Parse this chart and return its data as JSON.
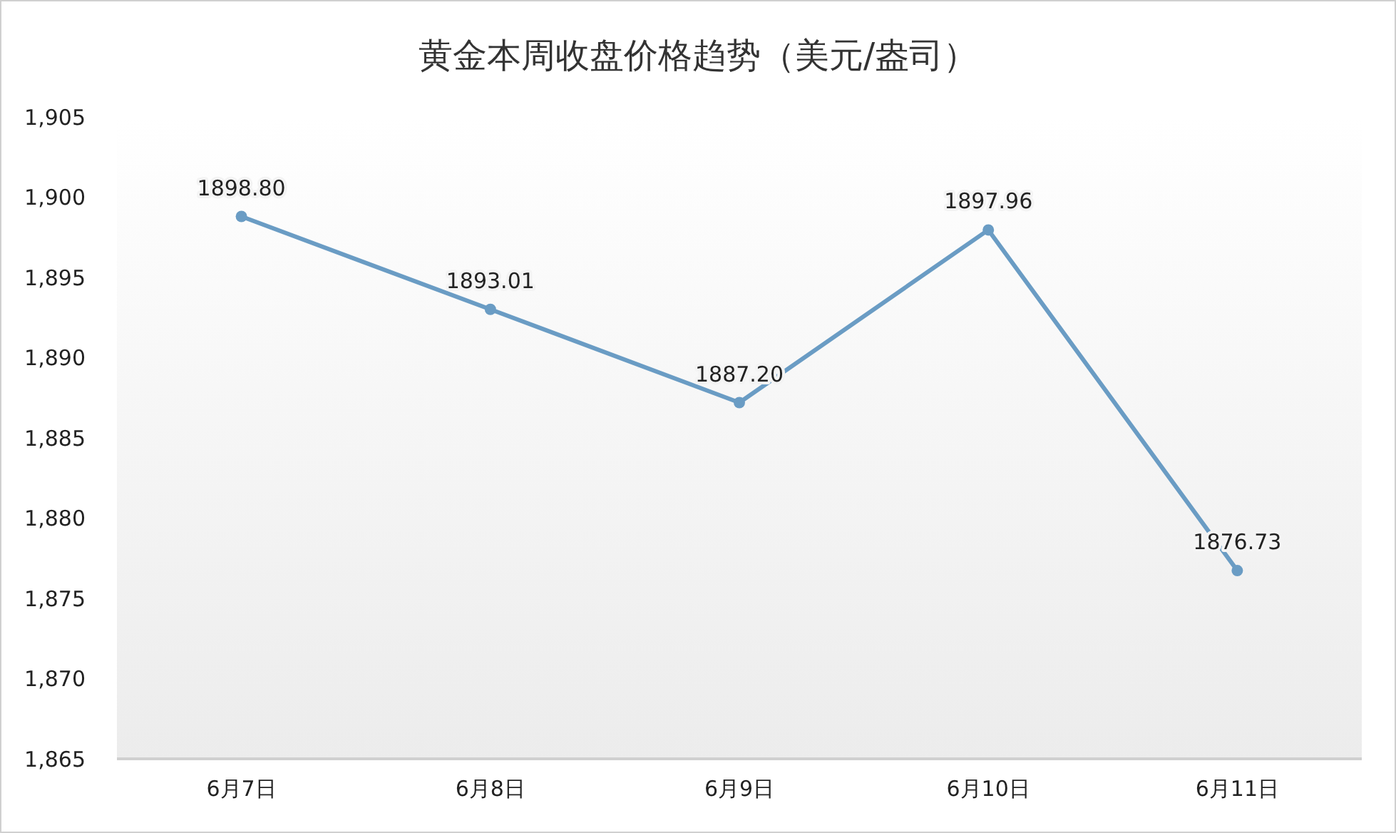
{
  "chart_data": {
    "type": "line",
    "title": "黄金本周收盘价格趋势（美元/盎司）",
    "categories": [
      "6月7日",
      "6月8日",
      "6月9日",
      "6月10日",
      "6月11日"
    ],
    "series": [
      {
        "color": "#6a9cc4",
        "values": [
          1898.8,
          1893.01,
          1887.2,
          1897.96,
          1876.73
        ],
        "value_labels": [
          "1898.80",
          "1893.01",
          "1887.20",
          "1897.96",
          "1876.73"
        ]
      }
    ],
    "ylim": [
      1865,
      1905
    ],
    "yticks": [
      {
        "value": 1865,
        "label": "1,865"
      },
      {
        "value": 1870,
        "label": "1,870"
      },
      {
        "value": 1875,
        "label": "1,875"
      },
      {
        "value": 1880,
        "label": "1,880"
      },
      {
        "value": 1885,
        "label": "1,885"
      },
      {
        "value": 1890,
        "label": "1,890"
      },
      {
        "value": 1895,
        "label": "1,895"
      },
      {
        "value": 1900,
        "label": "1,900"
      },
      {
        "value": 1905,
        "label": "1,905"
      }
    ],
    "marker": "circle",
    "line_style": "solid",
    "grid": false
  }
}
